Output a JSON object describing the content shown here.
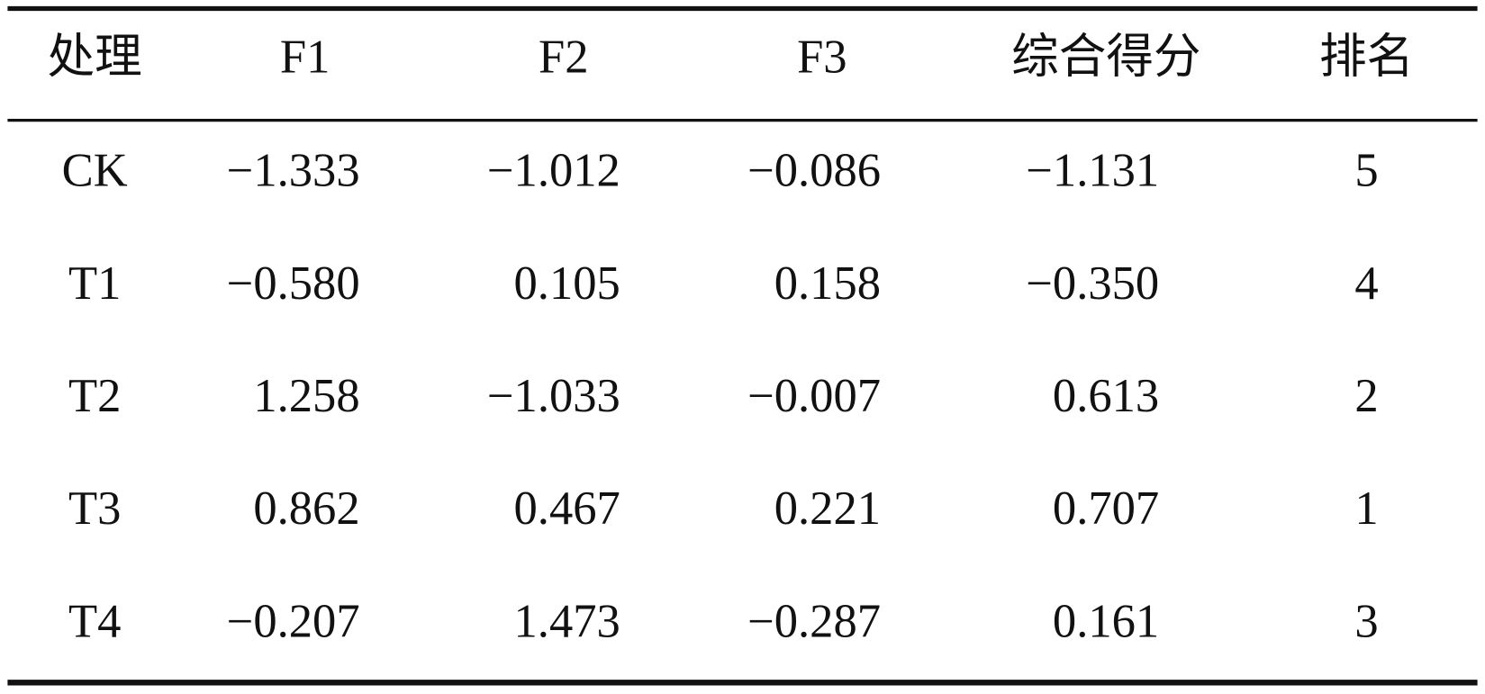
{
  "table": {
    "header": [
      "处理",
      "F1",
      "F2",
      "F3",
      "综合得分",
      "排名"
    ],
    "rows": [
      [
        "CK",
        "−1.333",
        "−1.012",
        "−0.086",
        "−1.131",
        "5"
      ],
      [
        "T1",
        "−0.580",
        "0.105",
        "0.158",
        "−0.350",
        "4"
      ],
      [
        "T2",
        "1.258",
        "−1.033",
        "−0.007",
        "0.613",
        "2"
      ],
      [
        "T3",
        "0.862",
        "0.467",
        "0.221",
        "0.707",
        "1"
      ],
      [
        "T4",
        "−0.207",
        "1.473",
        "−0.287",
        "0.161",
        "3"
      ]
    ]
  }
}
